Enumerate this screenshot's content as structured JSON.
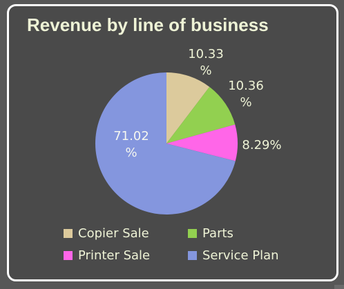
{
  "chart_data": {
    "type": "pie",
    "title": "Revenue by line of business",
    "categories": [
      "Copier Sale",
      "Parts",
      "Printer Sale",
      "Service Plan"
    ],
    "values": [
      10.33,
      10.36,
      8.29,
      71.02
    ],
    "labels": [
      [
        "10.33",
        "%"
      ],
      [
        "10.36",
        "%"
      ],
      [
        "8.29%"
      ],
      [
        "71.02",
        "%"
      ]
    ],
    "colors": [
      "#dcca9c",
      "#92d050",
      "#ff66e8",
      "#8496de"
    ],
    "legend_position": "bottom"
  }
}
